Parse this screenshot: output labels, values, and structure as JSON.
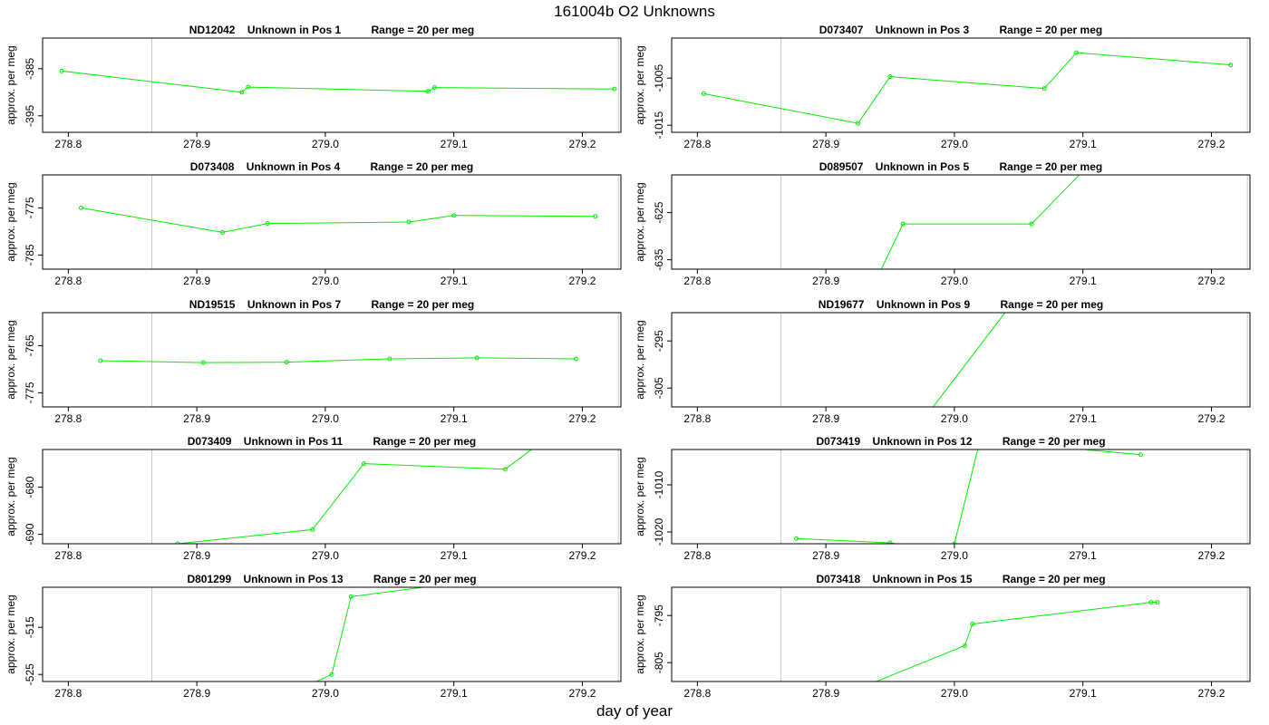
{
  "figure": {
    "title": "161004b  O2 Unknowns",
    "xlabel": "day of year",
    "ylabel": "approx. per meg",
    "line_color": "#00ee00"
  },
  "chart_data": [
    {
      "type": "line",
      "title": "ND12042    Unknown in Pos 1          Range = 20 per meg",
      "xlim": [
        278.78,
        279.23
      ],
      "ylim": [
        -398.5,
        -378.5
      ],
      "xticks": [
        278.8,
        278.9,
        279.0,
        279.1,
        279.2
      ],
      "yticks": [
        -385,
        -395
      ],
      "vlines": [
        278.865,
        279.228
      ],
      "x": [
        278.795,
        278.935,
        278.94,
        279.08,
        279.085,
        279.225
      ],
      "y": [
        -385.5,
        -390.0,
        -388.9,
        -389.8,
        -389.0,
        -389.3
      ]
    },
    {
      "type": "line",
      "title": "D073407    Unknown in Pos 3          Range = 20 per meg",
      "xlim": [
        278.78,
        279.23
      ],
      "ylim": [
        -1016.5,
        -996.5
      ],
      "xticks": [
        278.8,
        278.9,
        279.0,
        279.1,
        279.2
      ],
      "yticks": [
        -1005,
        -1015
      ],
      "vlines": [
        278.865,
        279.228
      ],
      "x": [
        278.805,
        278.925,
        278.95,
        279.07,
        279.095,
        279.215
      ],
      "y": [
        -1008.3,
        -1014.6,
        -1004.7,
        -1007.2,
        -999.6,
        -1002.2
      ]
    },
    {
      "type": "line",
      "title": "D073408    Unknown in Pos 4          Range = 20 per meg",
      "xlim": [
        278.78,
        279.23
      ],
      "ylim": [
        -788,
        -768
      ],
      "xticks": [
        278.8,
        278.9,
        279.0,
        279.1,
        279.2
      ],
      "yticks": [
        -775,
        -785
      ],
      "vlines": [
        278.865,
        279.228
      ],
      "x": [
        278.81,
        278.92,
        278.955,
        279.065,
        279.1,
        279.21
      ],
      "y": [
        -775.0,
        -780.2,
        -778.3,
        -778.0,
        -776.6,
        -776.8
      ]
    },
    {
      "type": "line",
      "title": "D089507    Unknown in Pos 5          Range = 20 per meg",
      "xlim": [
        278.78,
        279.23
      ],
      "ylim": [
        -637,
        -617
      ],
      "xticks": [
        278.8,
        278.9,
        279.0,
        279.1,
        279.2
      ],
      "yticks": [
        -625,
        -635
      ],
      "vlines": [
        278.865,
        279.228
      ],
      "x": [
        278.94,
        278.96,
        279.06,
        279.1
      ],
      "y": [
        -638.8,
        -627.4,
        -627.4,
        -616.2
      ]
    },
    {
      "type": "line",
      "title": "ND19515    Unknown in Pos 7          Range = 20 per meg",
      "xlim": [
        278.78,
        279.23
      ],
      "ylim": [
        -778,
        -758
      ],
      "xticks": [
        278.8,
        278.9,
        279.0,
        279.1,
        279.2
      ],
      "yticks": [
        -765,
        -775
      ],
      "vlines": [
        278.865,
        279.228
      ],
      "x": [
        278.825,
        278.905,
        278.97,
        279.05,
        279.118,
        279.195
      ],
      "y": [
        -768.2,
        -768.6,
        -768.5,
        -767.8,
        -767.6,
        -767.8
      ]
    },
    {
      "type": "line",
      "title": "ND19677    Unknown in Pos 9          Range = 20 per meg",
      "xlim": [
        278.78,
        279.23
      ],
      "ylim": [
        -309,
        -289
      ],
      "xticks": [
        278.8,
        278.9,
        279.0,
        279.1,
        279.2
      ],
      "yticks": [
        -295,
        -305
      ],
      "vlines": [
        278.865,
        279.228
      ],
      "x": [
        278.975,
        279.045
      ],
      "y": [
        -312.0,
        -287.0
      ]
    },
    {
      "type": "line",
      "title": "D073409    Unknown in Pos 11          Range = 20 per meg",
      "xlim": [
        278.78,
        279.23
      ],
      "ylim": [
        -692,
        -672
      ],
      "xticks": [
        278.8,
        278.9,
        279.0,
        279.1,
        279.2
      ],
      "yticks": [
        -680,
        -690
      ],
      "vlines": [
        278.865,
        279.228
      ],
      "x": [
        278.88,
        278.885,
        278.99,
        279.03,
        279.14,
        279.175
      ],
      "y": [
        -692.5,
        -692.0,
        -689.0,
        -675.0,
        -676.2,
        -669.0
      ]
    },
    {
      "type": "line",
      "title": "D073419    Unknown in Pos 12          Range = 20 per meg",
      "xlim": [
        278.78,
        279.23
      ],
      "ylim": [
        -1022.5,
        -1002.5
      ],
      "xticks": [
        278.8,
        278.9,
        279.0,
        279.1,
        279.2
      ],
      "yticks": [
        -1010,
        -1020
      ],
      "vlines": [
        278.865,
        279.228
      ],
      "x": [
        278.877,
        278.95,
        278.99,
        279.0,
        279.02,
        279.145
      ],
      "y": [
        -1021.4,
        -1022.3,
        -1024.0,
        -1022.5,
        -1000.5,
        -1003.6
      ]
    },
    {
      "type": "line",
      "title": "D801299    Unknown in Pos 13          Range = 20 per meg",
      "xlim": [
        278.78,
        279.23
      ],
      "ylim": [
        -526.5,
        -506.5
      ],
      "xticks": [
        278.8,
        278.9,
        279.0,
        279.1,
        279.2
      ],
      "yticks": [
        -515,
        -525
      ],
      "vlines": [
        278.865,
        279.228
      ],
      "x": [
        278.985,
        279.005,
        279.02,
        279.09
      ],
      "y": [
        -527.5,
        -525.0,
        -508.5,
        -506.0
      ]
    },
    {
      "type": "line",
      "title": "D073418    Unknown in Pos 15          Range = 20 per meg",
      "xlim": [
        278.78,
        279.23
      ],
      "ylim": [
        -809,
        -789
      ],
      "xticks": [
        278.8,
        278.9,
        279.0,
        279.1,
        279.2
      ],
      "yticks": [
        -795,
        -805
      ],
      "vlines": [
        278.865,
        279.228
      ],
      "x": [
        278.93,
        279.008,
        279.014,
        279.153,
        279.158
      ],
      "y": [
        -810.0,
        -801.4,
        -796.8,
        -792.2,
        -792.2
      ]
    }
  ]
}
